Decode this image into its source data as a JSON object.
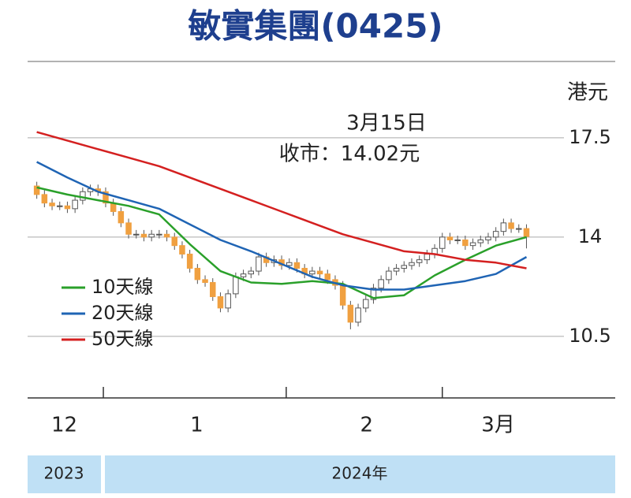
{
  "chart_data": {
    "type": "candlestick",
    "title": "敏實集團(0425)",
    "y_unit": "港元",
    "annotations": [
      "3月15日",
      "收市：14.02元"
    ],
    "ylim": [
      8.33,
      20.19
    ],
    "yticks": [
      10.5,
      14,
      17.5
    ],
    "grid": true,
    "xlim": [
      -1.2,
      75.6
    ],
    "xticks": [
      8.7,
      32.6,
      53.0
    ],
    "month_labels": [
      {
        "value": 3.6,
        "label": "12"
      },
      {
        "value": 20.9,
        "label": "1"
      },
      {
        "value": 43.1,
        "label": "2"
      },
      {
        "value": 60.3,
        "label": "3月"
      }
    ],
    "years": [
      "2023",
      "2024年"
    ],
    "up_color": "#ffffff",
    "down_color": "#f0a040",
    "legend": "left",
    "candles": {
      "open": [
        15.8,
        15.5,
        15.2,
        15.1,
        15.1,
        15.0,
        15.3,
        15.6,
        15.7,
        15.6,
        15.2,
        14.9,
        14.5,
        14.1,
        14.1,
        14.0,
        14.1,
        14.1,
        14.0,
        13.7,
        13.4,
        12.9,
        12.5,
        12.4,
        11.9,
        11.5,
        12.0,
        12.6,
        12.7,
        12.8,
        13.3,
        13.1,
        13.2,
        13.0,
        13.1,
        12.9,
        12.7,
        12.8,
        12.7,
        12.5,
        12.3,
        11.6,
        11.0,
        11.5,
        11.8,
        12.2,
        12.5,
        12.8,
        12.9,
        13.0,
        13.1,
        13.2,
        13.4,
        13.6,
        14.0,
        13.9,
        13.9,
        13.7,
        13.8,
        13.9,
        14.0,
        14.2,
        14.5,
        14.3,
        14.3
      ],
      "high": [
        15.95,
        15.65,
        15.35,
        15.25,
        15.25,
        15.45,
        15.75,
        15.85,
        15.85,
        15.75,
        15.35,
        15.05,
        14.65,
        14.25,
        14.25,
        14.25,
        14.25,
        14.25,
        14.15,
        13.85,
        13.55,
        13.05,
        12.65,
        12.55,
        12.05,
        12.15,
        12.75,
        12.85,
        12.95,
        13.45,
        13.45,
        13.35,
        13.35,
        13.25,
        13.25,
        13.05,
        12.95,
        12.95,
        12.85,
        12.65,
        12.45,
        11.75,
        11.65,
        11.95,
        12.35,
        12.65,
        12.95,
        13.05,
        13.15,
        13.25,
        13.35,
        13.55,
        13.75,
        14.15,
        14.15,
        14.05,
        14.05,
        13.95,
        14.05,
        14.15,
        14.35,
        14.65,
        14.65,
        14.45,
        14.45
      ],
      "low": [
        15.35,
        15.05,
        14.95,
        14.95,
        14.85,
        14.85,
        15.15,
        15.45,
        15.45,
        15.05,
        14.75,
        14.35,
        13.95,
        13.95,
        13.85,
        13.85,
        13.95,
        13.85,
        13.55,
        13.25,
        12.75,
        12.35,
        12.25,
        11.75,
        11.35,
        11.35,
        11.85,
        12.45,
        12.55,
        12.65,
        12.95,
        12.95,
        12.85,
        12.85,
        12.75,
        12.55,
        12.55,
        12.55,
        12.35,
        12.15,
        11.45,
        10.75,
        10.85,
        11.35,
        11.65,
        12.05,
        12.35,
        12.65,
        12.75,
        12.85,
        12.95,
        13.05,
        13.25,
        13.45,
        13.75,
        13.75,
        13.55,
        13.55,
        13.65,
        13.75,
        13.85,
        14.05,
        14.15,
        14.15,
        13.6
      ],
      "close": [
        15.5,
        15.2,
        15.1,
        15.1,
        15.0,
        15.3,
        15.6,
        15.7,
        15.6,
        15.2,
        14.9,
        14.5,
        14.1,
        14.1,
        14.0,
        14.1,
        14.1,
        14.0,
        13.7,
        13.4,
        12.9,
        12.5,
        12.4,
        11.9,
        11.5,
        12.0,
        12.6,
        12.7,
        12.8,
        13.3,
        13.1,
        13.2,
        13.0,
        13.1,
        12.9,
        12.7,
        12.8,
        12.7,
        12.5,
        12.3,
        11.6,
        11.0,
        11.5,
        11.8,
        12.2,
        12.5,
        12.8,
        12.9,
        13.0,
        13.1,
        13.2,
        13.4,
        13.6,
        14.0,
        13.9,
        13.9,
        13.7,
        13.8,
        13.9,
        14.0,
        14.2,
        14.5,
        14.3,
        14.3,
        14.02
      ]
    },
    "series": [
      {
        "name": "10天線",
        "color": "#2aa02a",
        "x": [
          0,
          4,
          8,
          12,
          16,
          20,
          24,
          28,
          32,
          36,
          40,
          44,
          48,
          52,
          56,
          60,
          64
        ],
        "values": [
          15.75,
          15.5,
          15.3,
          15.1,
          14.8,
          13.75,
          12.8,
          12.4,
          12.35,
          12.45,
          12.35,
          11.85,
          11.95,
          12.65,
          13.2,
          13.7,
          14.0
        ]
      },
      {
        "name": "20天線",
        "color": "#1f64b4",
        "x": [
          0,
          4,
          8,
          12,
          16,
          20,
          24,
          28,
          32,
          36,
          40,
          44,
          48,
          52,
          56,
          60,
          64
        ],
        "values": [
          16.65,
          16.1,
          15.6,
          15.3,
          15.0,
          14.45,
          13.9,
          13.5,
          13.05,
          12.6,
          12.3,
          12.15,
          12.15,
          12.3,
          12.45,
          12.7,
          13.3
        ]
      },
      {
        "name": "50天線",
        "color": "#d42020",
        "x": [
          0,
          4,
          8,
          12,
          16,
          20,
          24,
          28,
          32,
          36,
          40,
          44,
          48,
          52,
          56,
          60,
          64
        ],
        "values": [
          17.7,
          17.4,
          17.1,
          16.8,
          16.5,
          16.1,
          15.7,
          15.3,
          14.9,
          14.5,
          14.1,
          13.8,
          13.5,
          13.4,
          13.2,
          13.1,
          12.9
        ]
      }
    ]
  }
}
